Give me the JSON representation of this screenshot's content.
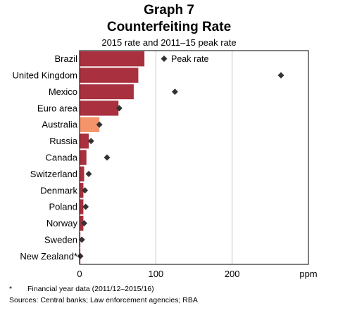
{
  "chart_data": {
    "type": "bar",
    "orientation": "horizontal",
    "title": "Graph 7",
    "subtitle_line": "Counterfeiting Rate",
    "subtitle": "2015 rate and 2011–15 peak rate",
    "unit_label": "ppm",
    "categories": [
      "Brazil",
      "United Kingdom",
      "Mexico",
      "Euro area",
      "Australia",
      "Russia",
      "Canada",
      "Switzerland",
      "Denmark",
      "Poland",
      "Norway",
      "Sweden",
      "New Zealand*"
    ],
    "series": [
      {
        "name": "2015 rate",
        "values": [
          85,
          77,
          71,
          51,
          26,
          12,
          9,
          6,
          5,
          5,
          5,
          1,
          1
        ]
      },
      {
        "name": "Peak rate",
        "values": [
          null,
          264,
          125,
          52,
          26,
          15,
          36,
          12,
          7,
          8,
          6,
          3,
          1
        ]
      }
    ],
    "highlight_category": "Australia",
    "xlim": [
      0,
      300
    ],
    "x_ticks": [
      "0",
      "100",
      "200"
    ],
    "x_tick_values": [
      0,
      100,
      200
    ],
    "legend": {
      "label": "Peak rate",
      "position": "top-right"
    },
    "colors": {
      "bar": "#a8303f",
      "highlight_bar": "#f4946a",
      "marker": "#333333",
      "grid": "#c8c8c8"
    },
    "grid": true
  },
  "footnotes": {
    "star_marker": "*",
    "star_text": "Financial year data (2011/12–2015/16)",
    "sources": "Sources: Central banks; Law enforcement agencies; RBA"
  }
}
